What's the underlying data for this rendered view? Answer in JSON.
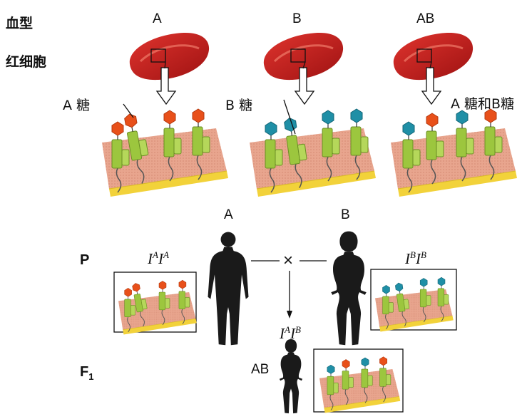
{
  "row_labels": {
    "blood_type": "血型",
    "red_cell": "红细胞"
  },
  "columns": [
    {
      "blood_type": "A",
      "sugar_label": "A 糖"
    },
    {
      "blood_type": "B",
      "sugar_label": "B 糖"
    },
    {
      "blood_type": "AB",
      "sugar_label": "A 糖和B糖"
    }
  ],
  "cross": {
    "p_label": "P",
    "f1_label_main": "F",
    "f1_label_sub": "1",
    "male_type": "A",
    "female_type": "B",
    "cross_symbol": "×",
    "male_genotype": {
      "allele1": "I",
      "sup1": "A",
      "allele2": "I",
      "sup2": "A"
    },
    "female_genotype": {
      "allele1": "I",
      "sup1": "B",
      "allele2": "I",
      "sup2": "B"
    },
    "child_genotype": {
      "allele1": "I",
      "sup1": "A",
      "allele2": "I",
      "sup2": "B"
    },
    "child_type": "AB"
  },
  "colors": {
    "red_cell": "#c81e1e",
    "a_sugar": "#e8501a",
    "b_sugar": "#1f8fa6",
    "glycoprotein": "#9cc63e",
    "membrane": "#e8a58e",
    "membrane_base": "#f2d23a",
    "silhouette": "#1a1a1a"
  }
}
